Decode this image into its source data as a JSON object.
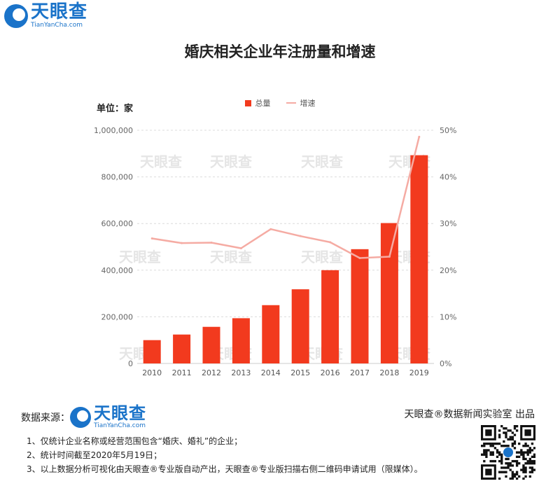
{
  "brand": {
    "name_cn": "天眼查",
    "name_en": "TianYanCha.com"
  },
  "title": "婚庆相关企业年注册量和增速",
  "unit_label": "单位：家",
  "colors": {
    "bar": "#f23a1e",
    "line": "#f5aba3",
    "brand": "#1a73c9"
  },
  "chart_data": {
    "type": "bar",
    "categories": [
      "2010",
      "2011",
      "2012",
      "2013",
      "2014",
      "2015",
      "2016",
      "2017",
      "2018",
      "2019"
    ],
    "series": [
      {
        "name": "总量",
        "type": "bar",
        "axis": "left",
        "values": [
          100000,
          124000,
          157000,
          194000,
          250000,
          318000,
          400000,
          490000,
          602000,
          893000
        ]
      },
      {
        "name": "增速",
        "type": "line",
        "axis": "right",
        "values": [
          26.8,
          25.8,
          25.9,
          24.7,
          28.8,
          27.3,
          26.0,
          22.6,
          22.9,
          48.6
        ]
      }
    ],
    "left_axis": {
      "ylim": [
        0,
        1000000
      ],
      "ticks": [
        "0",
        "200,000",
        "400,000",
        "600,000",
        "800,000",
        "1,000,000"
      ]
    },
    "right_axis": {
      "ylim": [
        0,
        50
      ],
      "ticks": [
        "0%",
        "10%",
        "20%",
        "30%",
        "40%",
        "50%"
      ]
    },
    "grid": true,
    "legend_position": "top-center"
  },
  "watermark_text": "天眼查",
  "source_label": "数据来源：",
  "credit": "天眼查®数据新闻实验室 出品",
  "notes": [
    "1、仅统计企业名称或经营范围包含“婚庆、婚礼”的企业；",
    "2、统计时间截至2020年5月19日；",
    "3、以上数据分析可视化由天眼查®专业版自动产出，天眼查®专业版扫描右侧二维码申请试用（限媒体）。"
  ]
}
